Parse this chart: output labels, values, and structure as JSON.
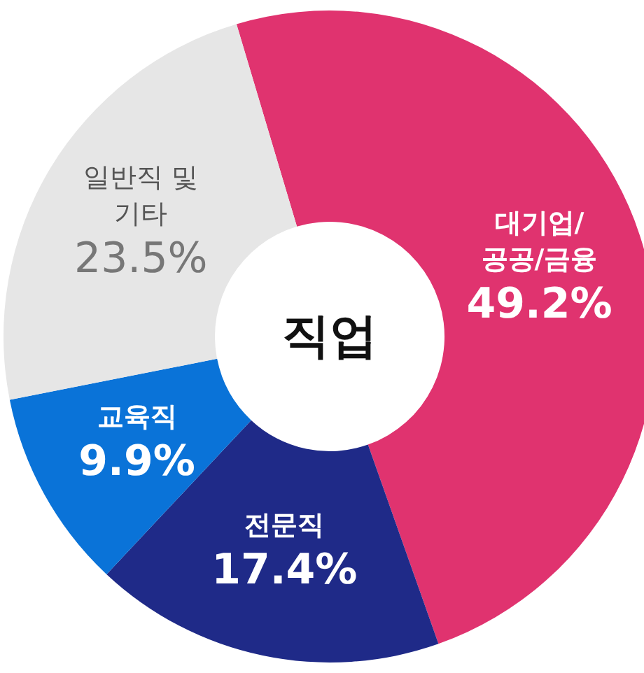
{
  "chart_data": {
    "type": "donut",
    "title": "직업",
    "categories": [
      "대기업/\n공공/금융",
      "전문직",
      "교육직",
      "일반직 및\n기타"
    ],
    "values": [
      49.2,
      17.4,
      9.9,
      23.5
    ],
    "colors": [
      "#e0336f",
      "#1f2a88",
      "#0a73d8",
      "#e6e6e6"
    ],
    "value_labels": [
      "49.2%",
      "17.4%",
      "9.9%",
      "23.5%"
    ]
  }
}
